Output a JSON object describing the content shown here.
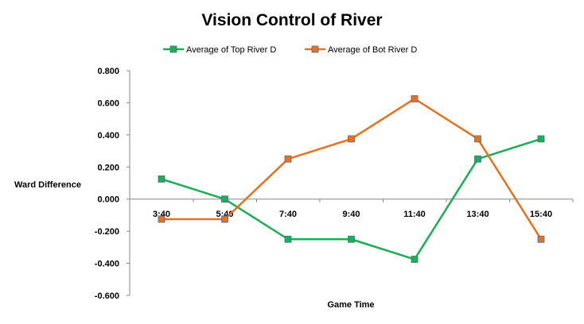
{
  "chart_data": {
    "type": "line",
    "title": "Vision Control of River",
    "xlabel": "Game Time",
    "ylabel": "Ward Difference",
    "categories": [
      "3:40",
      "5:40",
      "7:40",
      "9:40",
      "11:40",
      "13:40",
      "15:40"
    ],
    "yticks": [
      "0.800",
      "0.600",
      "0.400",
      "0.200",
      "0.000",
      "-0.200",
      "-0.400",
      "-0.600"
    ],
    "ylim": [
      -0.6,
      0.8
    ],
    "grid": false,
    "legend": "top",
    "series": [
      {
        "name": "Average of Top River D",
        "color": "#1aaf54",
        "values": [
          0.125,
          0.0,
          -0.25,
          -0.25,
          -0.375,
          0.25,
          0.375
        ]
      },
      {
        "name": "Average of Bot River D",
        "color": "#e8711d",
        "values": [
          -0.125,
          -0.125,
          0.25,
          0.375,
          0.625,
          0.375,
          -0.25
        ]
      }
    ]
  }
}
